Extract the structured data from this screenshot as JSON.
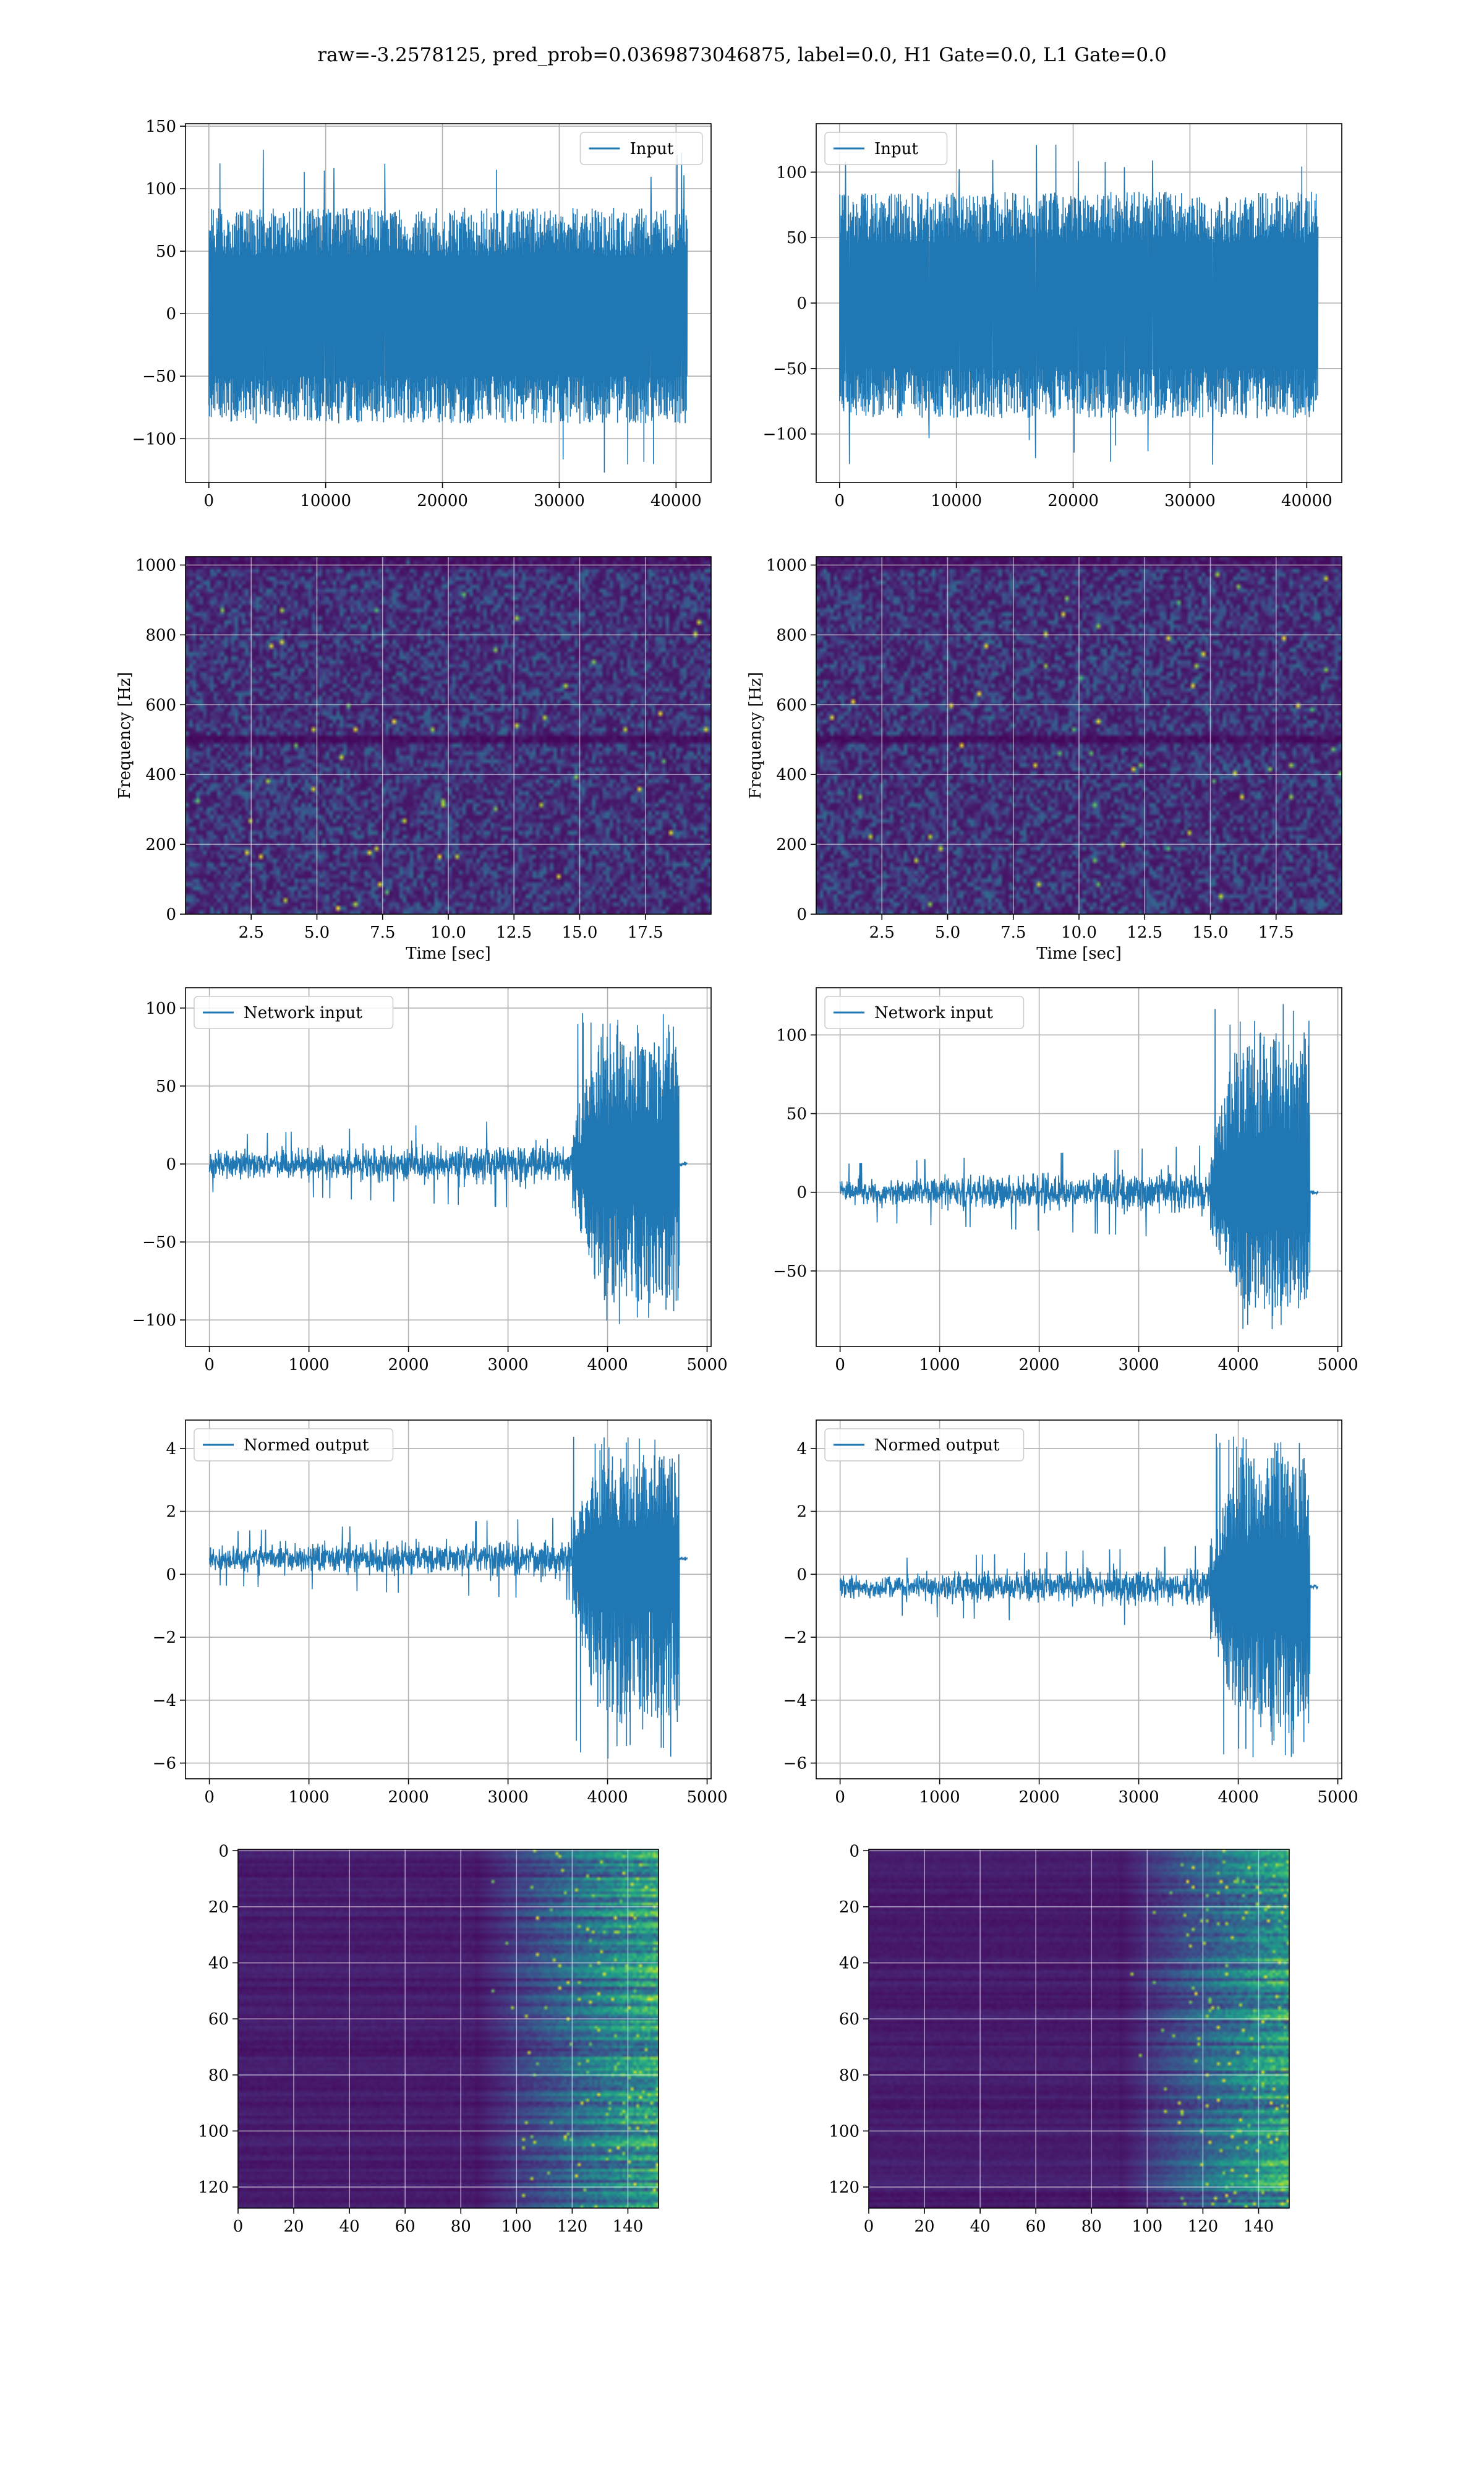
{
  "figure_title": "raw=-3.2578125, pred_prob=0.0369873046875, label=0.0, H1 Gate=0.0, L1 Gate=0.0",
  "colors": {
    "series": "#1f77b4",
    "grid": "#b0b0b0",
    "frame": "#000000",
    "viridis_low": "#440154",
    "viridis_high": "#fde725"
  },
  "chart_data": [
    {
      "type": "line",
      "row": 1,
      "col": 1,
      "legend": "Input",
      "legend_loc": "upper right",
      "title": "",
      "xlabel": "",
      "ylabel": "",
      "xlim": [
        -2000,
        43000
      ],
      "ylim": [
        -135,
        152
      ],
      "xticks": [
        0,
        10000,
        20000,
        30000,
        40000
      ],
      "yticks": [
        -100,
        -50,
        0,
        50,
        100,
        150
      ],
      "x_range": [
        0,
        40960
      ],
      "envelope_max": 85,
      "envelope_min": -88,
      "spike_max": 132,
      "spike_min": -128,
      "grid": true
    },
    {
      "type": "line",
      "row": 1,
      "col": 2,
      "legend": "Input",
      "legend_loc": "upper left",
      "title": "",
      "xlabel": "",
      "ylabel": "",
      "xlim": [
        -2000,
        43000
      ],
      "ylim": [
        -137,
        137
      ],
      "xticks": [
        0,
        10000,
        20000,
        30000,
        40000
      ],
      "yticks": [
        -100,
        -50,
        0,
        50,
        100
      ],
      "x_range": [
        0,
        40960
      ],
      "envelope_max": 85,
      "envelope_min": -88,
      "spike_max": 122,
      "spike_min": -125,
      "grid": true
    },
    {
      "type": "heatmap",
      "row": 2,
      "col": 1,
      "title": "",
      "xlabel": "Time [sec]",
      "ylabel": "Frequency [Hz]",
      "xlim": [
        0,
        20
      ],
      "ylim": [
        0,
        1024
      ],
      "xticks": [
        2.5,
        5.0,
        7.5,
        10.0,
        12.5,
        15.0,
        17.5
      ],
      "yticks": [
        0,
        200,
        400,
        600,
        800,
        1000
      ],
      "colormap": "viridis",
      "grid": true,
      "dark_band_hz": [
        490,
        510
      ]
    },
    {
      "type": "heatmap",
      "row": 2,
      "col": 2,
      "title": "",
      "xlabel": "Time [sec]",
      "ylabel": "Frequency [Hz]",
      "xlim": [
        0,
        20
      ],
      "ylim": [
        0,
        1024
      ],
      "xticks": [
        2.5,
        5.0,
        7.5,
        10.0,
        12.5,
        15.0,
        17.5
      ],
      "yticks": [
        0,
        200,
        400,
        600,
        800,
        1000
      ],
      "colormap": "viridis",
      "grid": true,
      "dark_band_hz": [
        490,
        510
      ]
    },
    {
      "type": "line",
      "row": 3,
      "col": 1,
      "legend": "Network input",
      "legend_loc": "upper left",
      "title": "",
      "xlabel": "",
      "ylabel": "",
      "xlim": [
        -240,
        5040
      ],
      "ylim": [
        -117,
        113
      ],
      "xticks": [
        0,
        1000,
        2000,
        3000,
        4000,
        5000
      ],
      "yticks": [
        -100,
        -50,
        0,
        50,
        100
      ],
      "x_range": [
        0,
        4800
      ],
      "amp_start": 15,
      "amp_mid": 25,
      "burst_start": 3650,
      "burst_end": 4720,
      "burst_max": 100,
      "burst_min": -105,
      "grid": true
    },
    {
      "type": "line",
      "row": 3,
      "col": 2,
      "legend": "Network input",
      "legend_loc": "upper left",
      "title": "",
      "xlabel": "",
      "ylabel": "",
      "xlim": [
        -240,
        5040
      ],
      "ylim": [
        -98,
        130
      ],
      "xticks": [
        0,
        1000,
        2000,
        3000,
        4000,
        5000
      ],
      "yticks": [
        -50,
        0,
        50,
        100
      ],
      "x_range": [
        0,
        4800
      ],
      "amp_start": 15,
      "amp_mid": 25,
      "burst_start": 3720,
      "burst_end": 4720,
      "burst_max": 120,
      "burst_min": -88,
      "grid": true
    },
    {
      "type": "line",
      "row": 4,
      "col": 1,
      "legend": "Normed output",
      "legend_loc": "upper left",
      "title": "",
      "xlabel": "",
      "ylabel": "",
      "xlim": [
        -240,
        5040
      ],
      "ylim": [
        -6.5,
        4.9
      ],
      "xticks": [
        0,
        1000,
        2000,
        3000,
        4000,
        5000
      ],
      "yticks": [
        -6,
        -4,
        -2,
        0,
        2,
        4
      ],
      "x_range": [
        0,
        4800
      ],
      "offset": 0.5,
      "amp_start": 0.7,
      "amp_mid": 1.1,
      "burst_start": 3650,
      "burst_end": 4720,
      "burst_max": 4.4,
      "burst_min": -5.9,
      "grid": true
    },
    {
      "type": "line",
      "row": 4,
      "col": 2,
      "legend": "Normed output",
      "legend_loc": "upper left",
      "title": "",
      "xlabel": "",
      "ylabel": "",
      "xlim": [
        -240,
        5040
      ],
      "ylim": [
        -6.5,
        4.9
      ],
      "xticks": [
        0,
        1000,
        2000,
        3000,
        4000,
        5000
      ],
      "yticks": [
        -6,
        -4,
        -2,
        0,
        2,
        4
      ],
      "x_range": [
        0,
        4800
      ],
      "offset": -0.4,
      "amp_start": 0.7,
      "amp_mid": 1.1,
      "burst_start": 3720,
      "burst_end": 4720,
      "burst_max": 4.5,
      "burst_min": -5.9,
      "grid": true
    },
    {
      "type": "heatmap",
      "row": 5,
      "col": 1,
      "title": "",
      "xlabel": "",
      "ylabel": "",
      "xlim": [
        0,
        151
      ],
      "ylim": [
        127.5,
        -0.5
      ],
      "xticks": [
        0,
        20,
        40,
        60,
        80,
        100,
        120,
        140
      ],
      "yticks": [
        0,
        20,
        40,
        60,
        80,
        100,
        120
      ],
      "colormap": "viridis",
      "grid": true,
      "activity_onset_col": 85
    },
    {
      "type": "heatmap",
      "row": 5,
      "col": 2,
      "title": "",
      "xlabel": "",
      "ylabel": "",
      "xlim": [
        0,
        151
      ],
      "ylim": [
        127.5,
        -0.5
      ],
      "xticks": [
        0,
        20,
        40,
        60,
        80,
        100,
        120,
        140
      ],
      "yticks": [
        0,
        20,
        40,
        60,
        80,
        100,
        120
      ],
      "colormap": "viridis",
      "grid": true,
      "activity_onset_col": 90
    }
  ]
}
